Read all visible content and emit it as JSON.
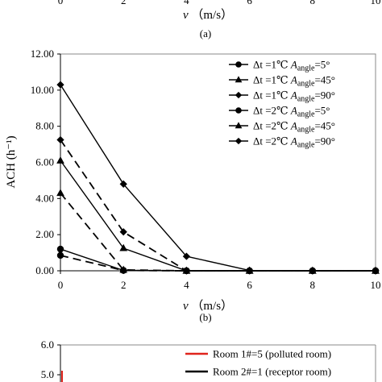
{
  "chart_data": [
    {
      "type": "line",
      "panel_label": "(a)",
      "xlabel_var": "v",
      "xlabel_unit": "（m/s）",
      "x_ticks": [
        "0",
        "2",
        "4",
        "6",
        "8",
        "10"
      ],
      "note": "only the bottom of this panel is visible"
    },
    {
      "type": "line",
      "panel_label": "(b)",
      "ylabel": "ACH (h⁻¹)",
      "xlabel_var": "v",
      "xlabel_unit": "（m/s）",
      "xlim": [
        0,
        10
      ],
      "ylim": [
        0,
        12
      ],
      "x_ticks": [
        "0",
        "2",
        "4",
        "6",
        "8",
        "10"
      ],
      "y_ticks": [
        "0.00",
        "2.00",
        "4.00",
        "6.00",
        "8.00",
        "10.00",
        "12.00"
      ],
      "grid": false,
      "legend_position": "top-right",
      "series": [
        {
          "name": "Δt =1℃ A_angle=5°",
          "label_parts": [
            "Δt =1℃ ",
            "A",
            "angle",
            "=5°"
          ],
          "marker": "circle",
          "dash": "solid",
          "x": [
            0,
            2,
            4,
            6,
            8,
            10
          ],
          "values": [
            1.2,
            0.02,
            0,
            0,
            0,
            0
          ]
        },
        {
          "name": "Δt =1℃ A_angle=45°",
          "label_parts": [
            "Δt =1℃ ",
            "A",
            "angle",
            "=45°"
          ],
          "marker": "triangle",
          "dash": "solid",
          "x": [
            0,
            2,
            4,
            6,
            8,
            10
          ],
          "values": [
            6.1,
            1.25,
            0,
            0,
            0,
            0
          ]
        },
        {
          "name": "Δt =1℃ A_angle=90°",
          "label_parts": [
            "Δt =1℃ ",
            "A",
            "angle",
            "=90°"
          ],
          "marker": "diamond",
          "dash": "solid",
          "x": [
            0,
            2,
            4,
            6,
            8,
            10
          ],
          "values": [
            10.3,
            4.8,
            0.8,
            0.02,
            0,
            0
          ]
        },
        {
          "name": "Δt =2℃ A_angle=5°",
          "label_parts": [
            "Δt =2℃ ",
            "A",
            "angle",
            "=5°"
          ],
          "marker": "circle",
          "dash": "dashed",
          "x": [
            0,
            2,
            4,
            6,
            8,
            10
          ],
          "values": [
            0.85,
            0.02,
            0,
            0,
            0,
            0
          ]
        },
        {
          "name": "Δt =2℃ A_angle=45°",
          "label_parts": [
            "Δt =2℃ ",
            "A",
            "angle",
            "=45°"
          ],
          "marker": "triangle",
          "dash": "dashed",
          "x": [
            0,
            2,
            4,
            6,
            8,
            10
          ],
          "values": [
            4.3,
            0.05,
            0,
            0,
            0,
            0
          ]
        },
        {
          "name": "Δt =2℃ A_angle=90°",
          "label_parts": [
            "Δt =2℃ ",
            "A",
            "angle",
            "=90°"
          ],
          "marker": "diamond",
          "dash": "dashed",
          "x": [
            0,
            2,
            4,
            6,
            8,
            10
          ],
          "values": [
            7.25,
            2.15,
            0,
            0,
            0,
            0
          ]
        }
      ]
    },
    {
      "type": "line",
      "y_ticks": [
        "6.0",
        "5.0"
      ],
      "legend_position": "top-right",
      "series": [
        {
          "name": "Room 1#=5 (polluted room)",
          "color": "#e0241c"
        },
        {
          "name": "Room 2#=1 (receptor room)",
          "color": "#000000"
        }
      ],
      "note": "only the top of this panel is visible"
    }
  ]
}
